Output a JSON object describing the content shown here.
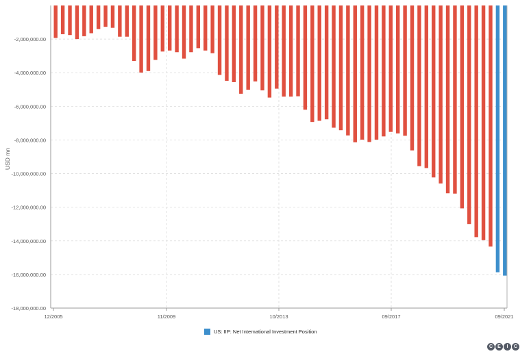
{
  "chart_data": {
    "type": "bar",
    "ylabel": "USD mn",
    "ylim": [
      -18000000,
      0
    ],
    "yticks": [
      -2000000,
      -4000000,
      -6000000,
      -8000000,
      -10000000,
      -12000000,
      -14000000,
      -16000000,
      -18000000
    ],
    "ytick_labels": [
      "-2,000,000.00",
      "-4,000,000.00",
      "-6,000,000.00",
      "-8,000,000.00",
      "-10,000,000.00",
      "-12,000,000.00",
      "-14,000,000.00",
      "-16,000,000.00",
      "-18,000,000.00"
    ],
    "xtick_labels": [
      "12/2005",
      "11/2009",
      "10/2013",
      "09/2017",
      "09/2021"
    ],
    "grid": true,
    "legend_position": "bottom",
    "colors": {
      "historical": "#e05040",
      "latest": "#3d8fcc"
    },
    "series": [
      {
        "name": "US: IIP: Net International Investment Position",
        "values": [
          -1930000,
          -1710000,
          -1760000,
          -2000000,
          -1830000,
          -1650000,
          -1400000,
          -1270000,
          -1330000,
          -1860000,
          -1860000,
          -3300000,
          -3990000,
          -3900000,
          -3240000,
          -2740000,
          -2680000,
          -2780000,
          -3160000,
          -2780000,
          -2540000,
          -2680000,
          -2840000,
          -4130000,
          -4480000,
          -4560000,
          -5250000,
          -5010000,
          -4520000,
          -5050000,
          -5480000,
          -4950000,
          -5420000,
          -5420000,
          -5400000,
          -6200000,
          -6930000,
          -6860000,
          -6770000,
          -7270000,
          -7420000,
          -7730000,
          -8140000,
          -7980000,
          -8120000,
          -7980000,
          -7790000,
          -7520000,
          -7610000,
          -7750000,
          -8620000,
          -9560000,
          -9670000,
          -10230000,
          -10590000,
          -11170000,
          -11190000,
          -12070000,
          -13000000,
          -13780000,
          -13960000,
          -14340000,
          -15870000,
          -16070000
        ],
        "highlight_from_index": 62
      }
    ]
  }
}
